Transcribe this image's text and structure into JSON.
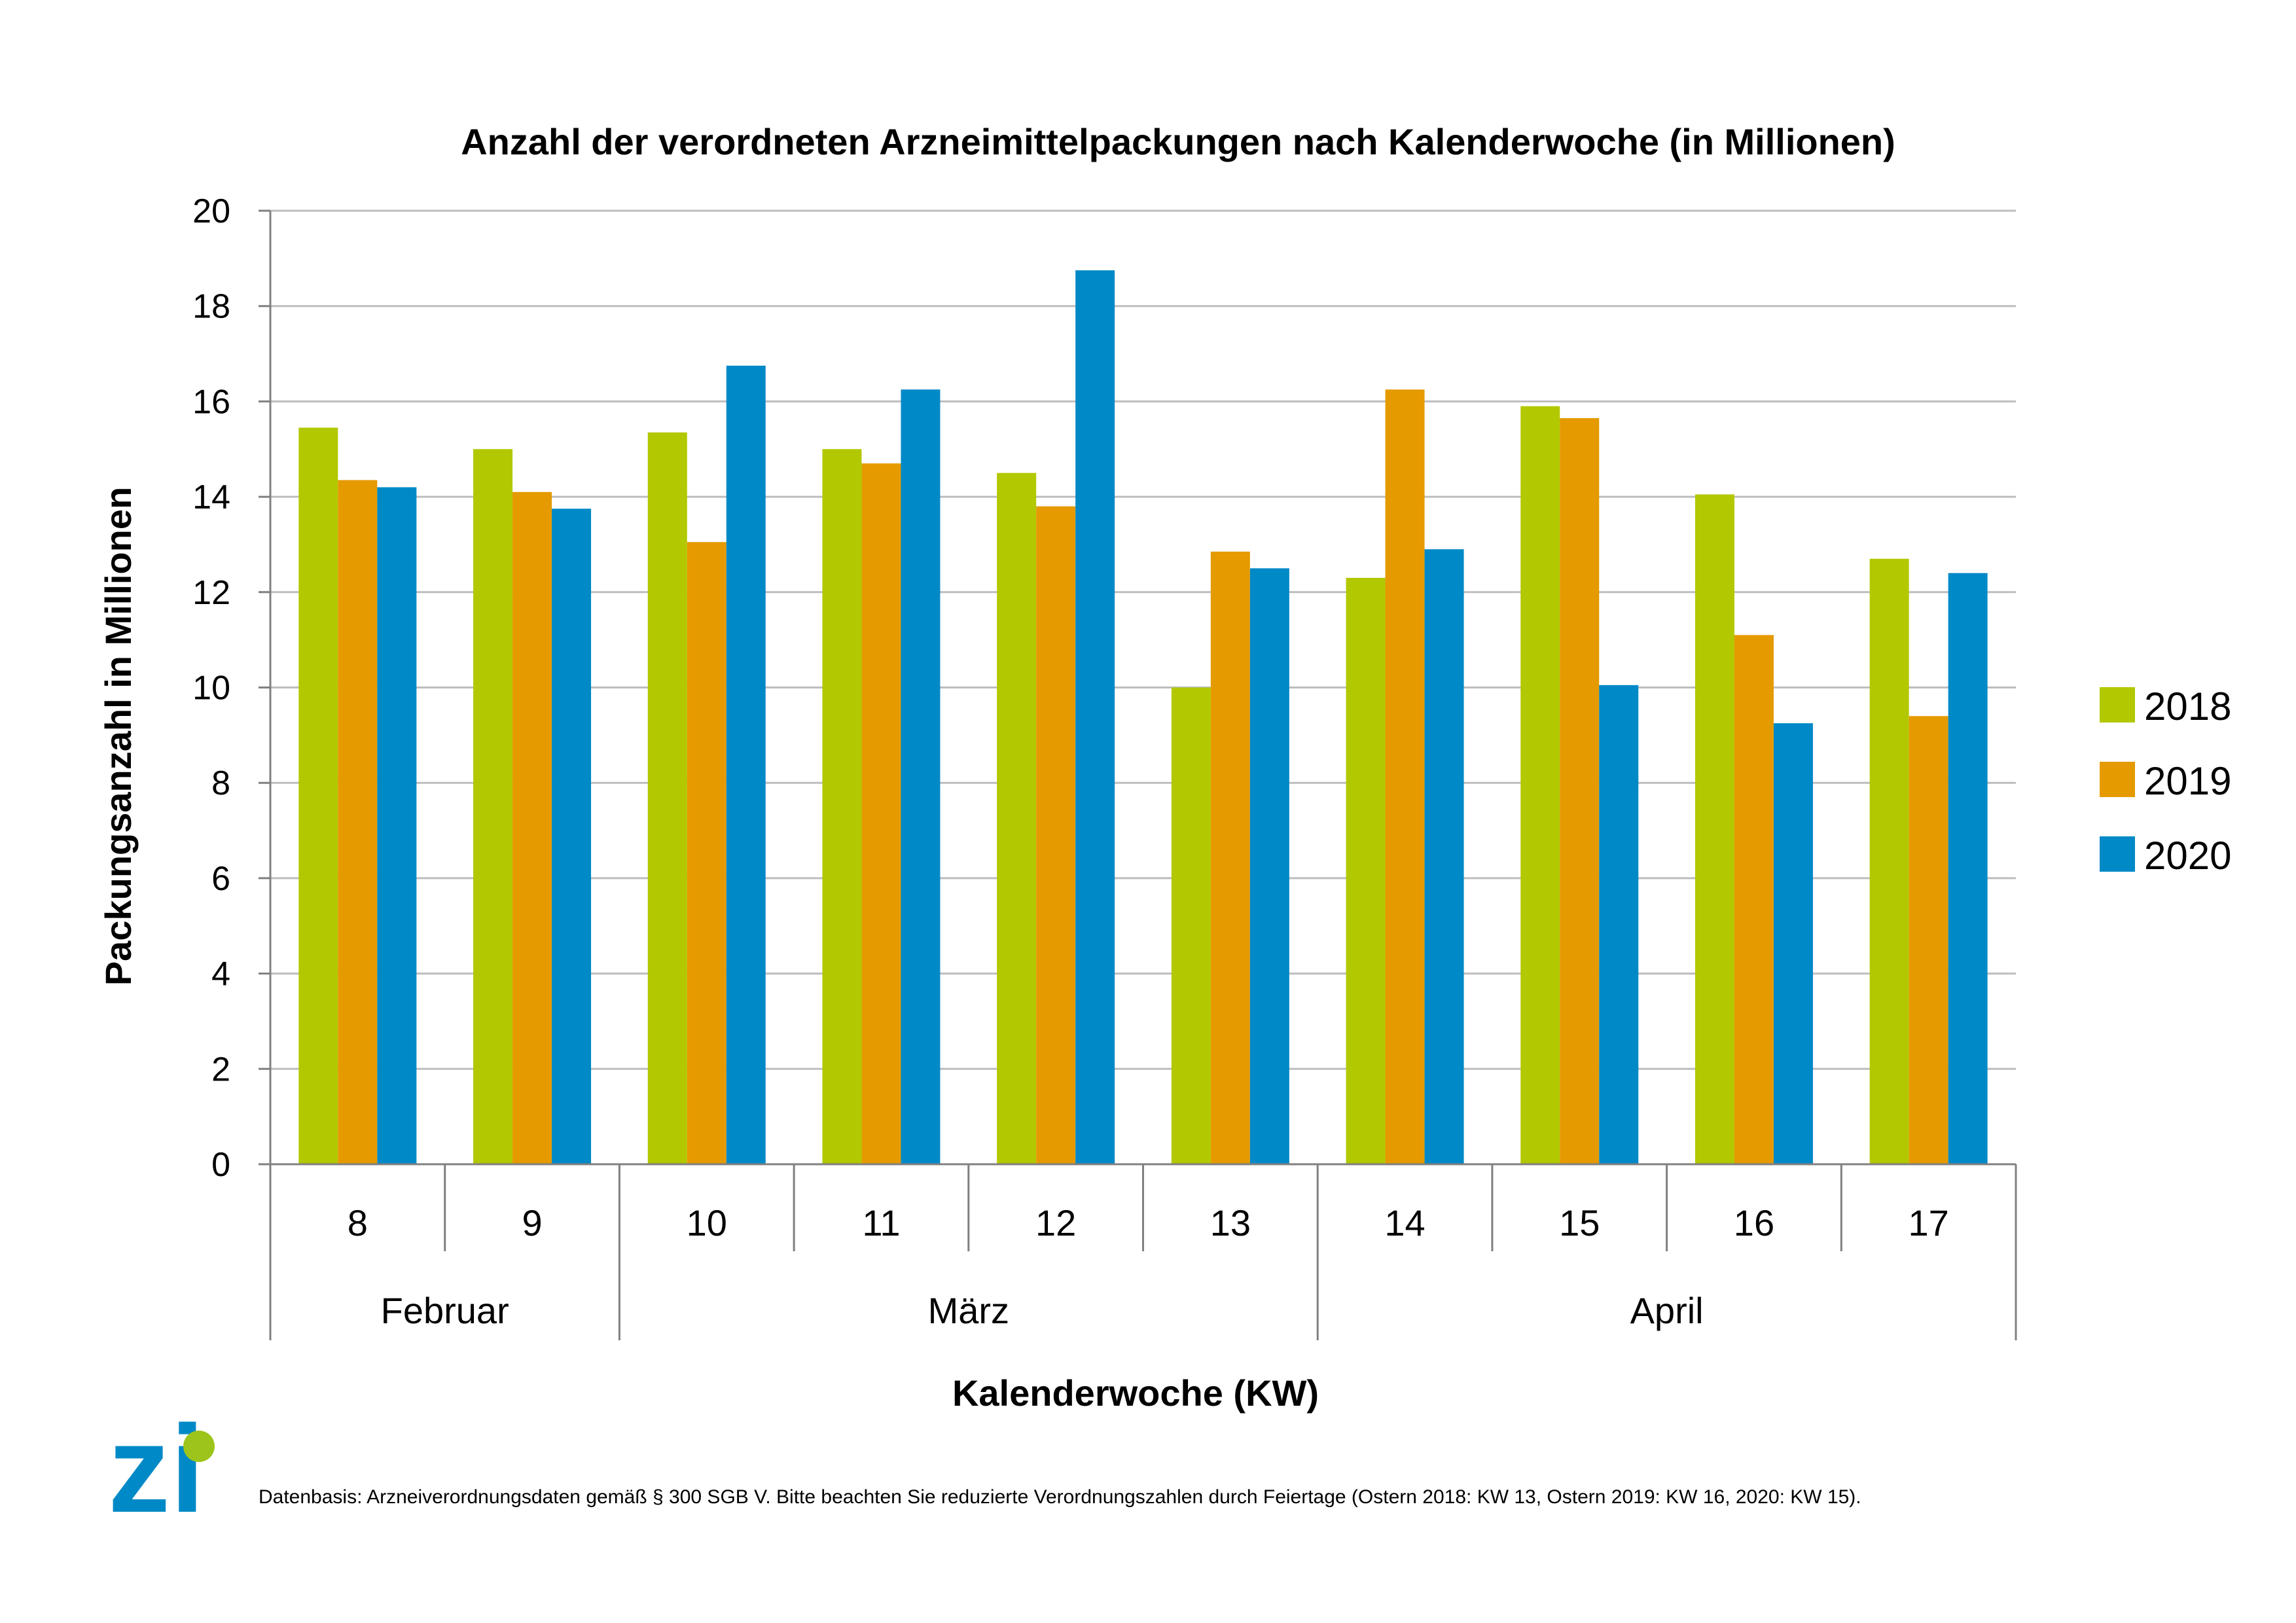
{
  "chart_data": {
    "type": "bar",
    "title": "Anzahl der verordneten Arzneimittelpackungen nach Kalenderwoche (in Millionen)",
    "xlabel": "Kalenderwoche (KW)",
    "ylabel": "Packungsanzahl in Millionen",
    "ylim": [
      0,
      20
    ],
    "yticks": [
      0,
      2,
      4,
      6,
      8,
      10,
      12,
      14,
      16,
      18,
      20
    ],
    "grid": true,
    "legend_position": "right",
    "categories": [
      "8",
      "9",
      "10",
      "11",
      "12",
      "13",
      "14",
      "15",
      "16",
      "17"
    ],
    "groups": [
      {
        "label": "Februar",
        "count": 2
      },
      {
        "label": "März",
        "count": 4
      },
      {
        "label": "April",
        "count": 4
      }
    ],
    "series": [
      {
        "name": "2018",
        "color": "#b2c800",
        "values": [
          15.45,
          15.0,
          15.35,
          15.0,
          14.5,
          10.0,
          12.3,
          15.9,
          14.05,
          12.7
        ]
      },
      {
        "name": "2019",
        "color": "#e59a00",
        "values": [
          14.35,
          14.1,
          13.05,
          14.7,
          13.8,
          12.85,
          16.25,
          15.65,
          11.1,
          9.4
        ]
      },
      {
        "name": "2020",
        "color": "#0089c7",
        "values": [
          14.2,
          13.75,
          16.75,
          16.25,
          18.75,
          12.5,
          12.9,
          10.05,
          9.25,
          12.4
        ]
      }
    ],
    "footnote": "Datenbasis: Arzneiverordnungsdaten gemäß § 300 SGB V. Bitte beachten Sie reduzierte Verordnungszahlen durch Feiertage (Ostern 2018: KW 13, Ostern 2019: KW 16, 2020: KW 15)."
  },
  "logo": {
    "text": "zi",
    "color": "#0089c7",
    "dot_color": "#9dc41a"
  }
}
